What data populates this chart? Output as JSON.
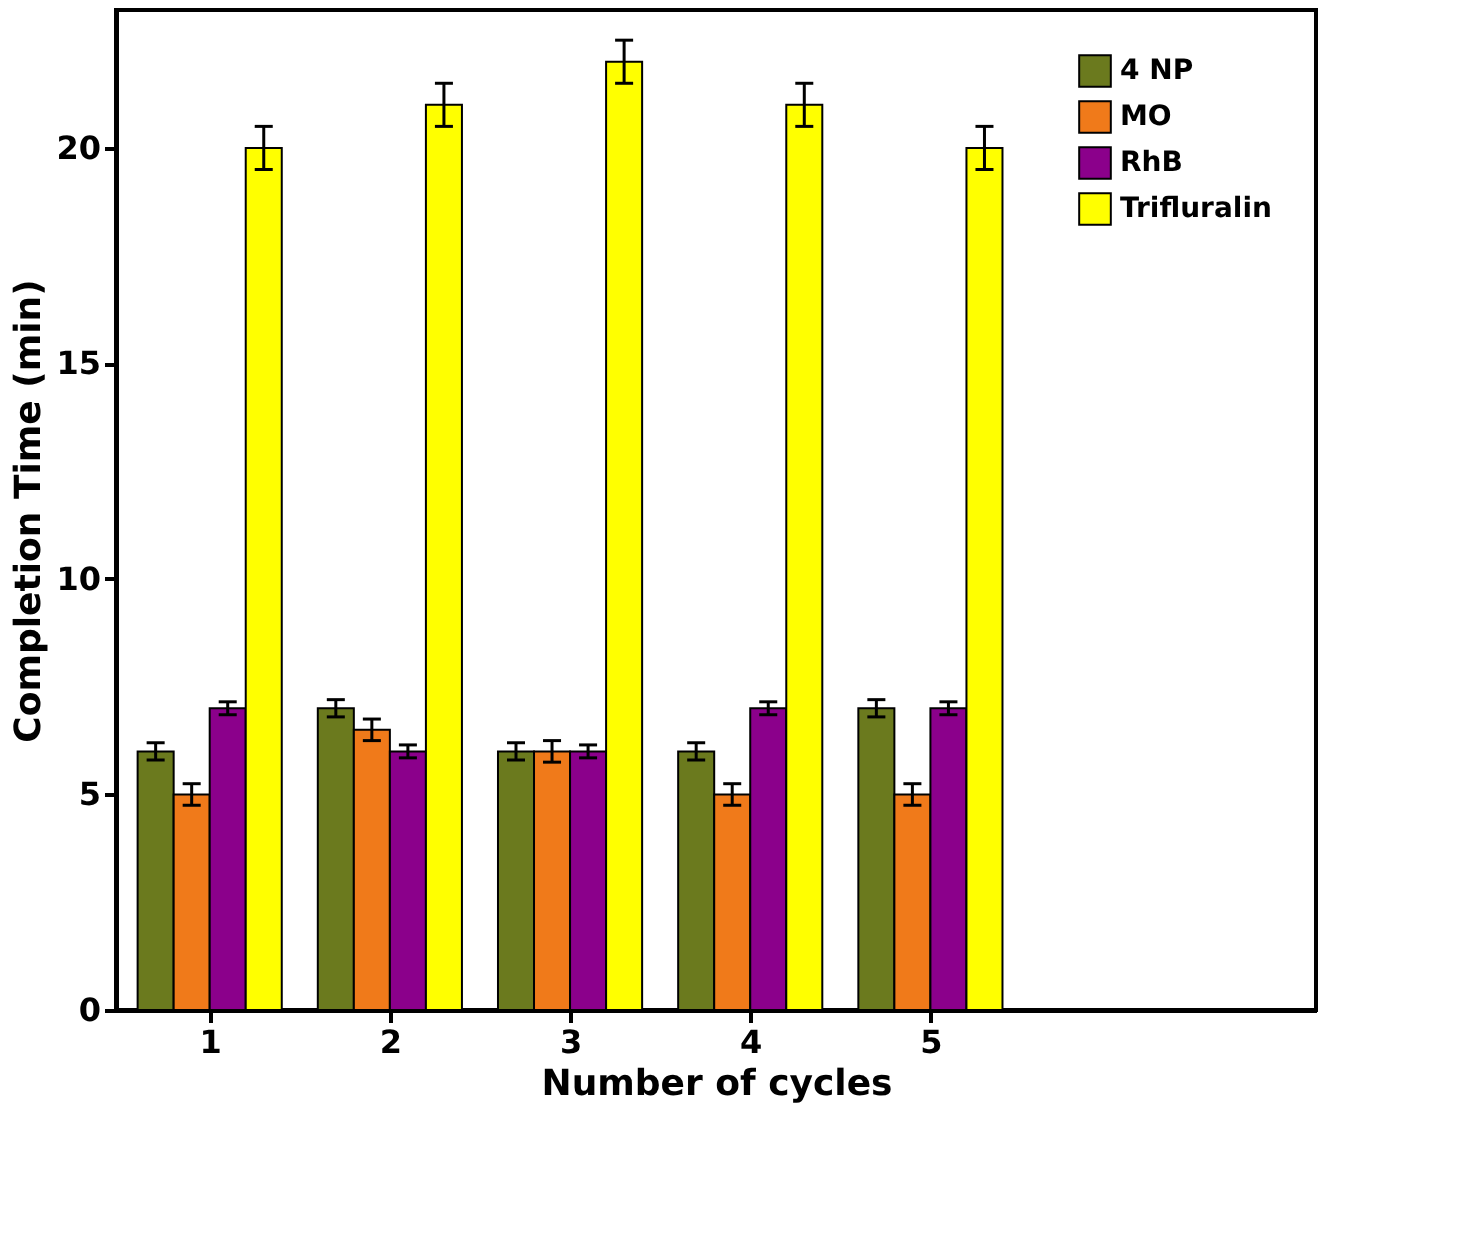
{
  "chart_data": {
    "type": "bar",
    "xlabel": "Number of cycles",
    "ylabel": "Completion Time (min)",
    "x": [
      1,
      2,
      3,
      4,
      5
    ],
    "xlim": [
      0.48,
      7.14
    ],
    "xticks": [
      1,
      2,
      3,
      4,
      5
    ],
    "ylim": [
      0,
      23.2
    ],
    "yticks": [
      0,
      5,
      10,
      15,
      20
    ],
    "series": [
      {
        "name": "4 NP",
        "color": "#6b7a1e",
        "values": [
          6,
          7,
          6,
          6,
          7
        ],
        "errors": [
          0.2,
          0.2,
          0.2,
          0.2,
          0.2
        ]
      },
      {
        "name": "MO",
        "color": "#f07a1a",
        "values": [
          5,
          6.5,
          6,
          5,
          5
        ],
        "errors": [
          0.25,
          0.25,
          0.25,
          0.25,
          0.25
        ]
      },
      {
        "name": "RhB",
        "color": "#8b008b",
        "values": [
          7,
          6,
          6,
          7,
          7
        ],
        "errors": [
          0.15,
          0.15,
          0.15,
          0.15,
          0.15
        ]
      },
      {
        "name": "Trifluralin",
        "color": "#ffff00",
        "values": [
          20,
          21,
          22,
          21,
          20
        ],
        "errors": [
          0.5,
          0.5,
          0.5,
          0.5,
          0.5
        ]
      }
    ],
    "legend": "top right",
    "grid": false
  }
}
